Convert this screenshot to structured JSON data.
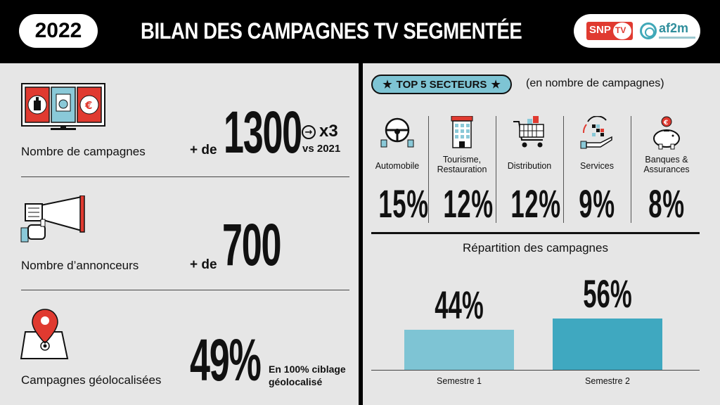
{
  "header": {
    "year": "2022",
    "title": "BILAN DES CAMPAGNES TV SEGMENTÉE",
    "logo_left": "SNP",
    "logo_left_tv": "TV",
    "logo_right": "af2m"
  },
  "stats": [
    {
      "label": "Nombre de campagnes",
      "prefix": "+ de",
      "value": "1300",
      "growth": "x3",
      "comparison": "vs 2021"
    },
    {
      "label": "Nombre d’annonceurs",
      "prefix": "+ de",
      "value": "700"
    },
    {
      "label": "Campagnes géolocalisées",
      "value": "49%",
      "note": "En 100% ciblage géolocalisé"
    }
  ],
  "sectors": {
    "title": "TOP 5 SECTEURS",
    "subtitle": "(en nombre de campagnes)",
    "items": [
      {
        "name": "Automobile",
        "pct": "15%"
      },
      {
        "name": "Tourisme, Restauration",
        "pct": "12%"
      },
      {
        "name": "Distribution",
        "pct": "12%"
      },
      {
        "name": "Services",
        "pct": "9%"
      },
      {
        "name": "Banques & Assurances",
        "pct": "8%"
      }
    ]
  },
  "repartition": {
    "title": "Répartition des campagnes"
  },
  "colors": {
    "background": "#e6e6e6",
    "header": "#000000",
    "accent_red": "#e03a30",
    "bar_light": "#7ec4d4",
    "bar_dark": "#3fa8c0"
  },
  "chart_data": {
    "type": "bar",
    "categories": [
      "Semestre 1",
      "Semestre 2"
    ],
    "values": [
      44,
      56
    ],
    "value_labels": [
      "44%",
      "56%"
    ],
    "title": "Répartition des campagnes",
    "xlabel": "",
    "ylabel": "",
    "ylim": [
      0,
      100
    ],
    "colors": [
      "#7ec4d4",
      "#3fa8c0"
    ]
  }
}
